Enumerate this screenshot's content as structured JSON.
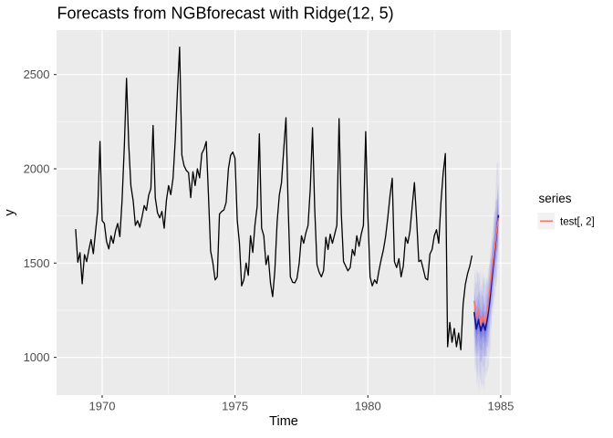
{
  "title": "Forecasts from NGBforecast with Ridge(12, 5)",
  "axes": {
    "x": {
      "label": "Time",
      "major_ticks": [
        1970,
        1975,
        1980,
        1985
      ],
      "minor_ticks": [
        1972.5,
        1977.5,
        1982.5
      ],
      "range": [
        1968.28,
        1985.38
      ]
    },
    "y": {
      "label": "y",
      "major_ticks": [
        1000,
        1500,
        2000,
        2500
      ],
      "minor_ticks": [
        1250,
        1750,
        2250
      ],
      "range": [
        800,
        2736
      ]
    }
  },
  "legend": {
    "title": "series",
    "items": [
      {
        "label": "test[, 2]",
        "color": "#F8766D"
      }
    ]
  },
  "colors": {
    "panel_bg": "#EBEBEB",
    "grid": "#FFFFFF",
    "history_line": "#000000",
    "test_line": "#F8766D",
    "forecast_line": "#16169B",
    "fan_base_rgb": "90,90,225",
    "tick_text": "#4D4D4D",
    "tick_mark": "#333333",
    "legend_key_bg": "#F2F2F2"
  },
  "chart_data": {
    "type": "line",
    "title": "Forecasts from NGBforecast with Ridge(12, 5)",
    "xlabel": "Time",
    "ylabel": "y",
    "grid": true,
    "legend_position": "right",
    "history": {
      "name": "y",
      "start_year": 1969.0,
      "step_years": 0.0833333,
      "values": [
        1680,
        1505,
        1555,
        1390,
        1545,
        1508,
        1570,
        1625,
        1550,
        1665,
        1780,
        2145,
        1725,
        1710,
        1615,
        1575,
        1645,
        1605,
        1670,
        1710,
        1640,
        1830,
        2120,
        2480,
        2130,
        1910,
        1830,
        1700,
        1725,
        1690,
        1745,
        1805,
        1780,
        1860,
        1895,
        2230,
        1847,
        1766,
        1740,
        1774,
        1685,
        1831,
        1911,
        1863,
        1950,
        2153,
        2411,
        2645,
        2072,
        2016,
        1992,
        1979,
        1847,
        1984,
        1911,
        2000,
        1952,
        2081,
        2105,
        2145,
        1863,
        1564,
        1500,
        1411,
        1427,
        1760,
        1774,
        1782,
        1822,
        2000,
        2072,
        2089,
        2056,
        1726,
        1605,
        1379,
        1411,
        1500,
        1435,
        1645,
        1556,
        1702,
        1800,
        2186,
        1685,
        1645,
        1492,
        1540,
        1395,
        1322,
        1460,
        1718,
        1860,
        1927,
        2100,
        2271,
        1798,
        1427,
        1398,
        1395,
        1419,
        1500,
        1645,
        1605,
        1660,
        1700,
        1900,
        2218,
        1790,
        1492,
        1451,
        1427,
        1459,
        1637,
        1572,
        1653,
        1605,
        1653,
        1701,
        2266,
        1758,
        1508,
        1484,
        1459,
        1476,
        1572,
        1540,
        1645,
        1589,
        1653,
        1701,
        2197,
        1750,
        1427,
        1379,
        1411,
        1392,
        1460,
        1520,
        1570,
        1640,
        1740,
        1860,
        1950,
        1508,
        1476,
        1524,
        1427,
        1484,
        1637,
        1605,
        1669,
        1798,
        1927,
        1734,
        1508,
        1516,
        1468,
        1419,
        1411,
        1548,
        1572,
        1645,
        1677,
        1605,
        1822,
        1976,
        2081,
        1056,
        1185,
        1080,
        1153,
        1056,
        1129,
        1040,
        1282,
        1387,
        1443,
        1484,
        1540
      ]
    },
    "forecast": {
      "start_year": 1984.0,
      "step_years": 0.0833333,
      "mean": [
        1240,
        1150,
        1200,
        1140,
        1180,
        1145,
        1210,
        1300,
        1420,
        1540,
        1650,
        1755
      ],
      "test": [
        1300,
        1210,
        1255,
        1170,
        1225,
        1180,
        1250,
        1350,
        1460,
        1560,
        1660,
        1740
      ],
      "outer_halfwidth": [
        200,
        285,
        300,
        290,
        280,
        268,
        258,
        250,
        255,
        262,
        272,
        283
      ],
      "band_fractions": [
        1.0,
        0.75,
        0.55,
        0.38,
        0.22,
        0.1
      ],
      "band_alphas": [
        0.1,
        0.13,
        0.17,
        0.22,
        0.3,
        0.45
      ]
    }
  }
}
